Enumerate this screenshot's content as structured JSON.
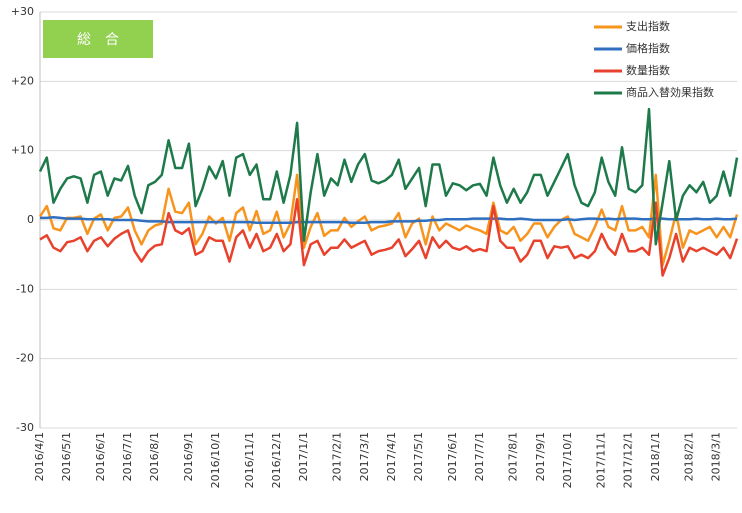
{
  "chart_data": {
    "type": "line",
    "title": "総　合",
    "categories": [
      "2016/4/1",
      null,
      null,
      null,
      "2016/5/1",
      null,
      null,
      null,
      null,
      "2016/6/1",
      null,
      null,
      null,
      "2016/7/1",
      null,
      null,
      null,
      "2016/8/1",
      null,
      null,
      null,
      null,
      "2016/9/1",
      null,
      null,
      null,
      "2016/10/1",
      null,
      null,
      null,
      null,
      "2016/11/1",
      null,
      null,
      null,
      "2016/12/1",
      null,
      null,
      null,
      "2017/1/1",
      null,
      null,
      null,
      null,
      "2017/2/1",
      null,
      null,
      null,
      "2017/3/1",
      null,
      null,
      null,
      "2017/4/1",
      null,
      null,
      null,
      "2017/5/1",
      null,
      null,
      null,
      null,
      "2017/6/1",
      null,
      null,
      null,
      "2017/7/1",
      null,
      null,
      null,
      null,
      "2017/8/1",
      null,
      null,
      null,
      "2017/9/1",
      null,
      null,
      null,
      "2017/10/1",
      null,
      null,
      null,
      null,
      "2017/11/1",
      null,
      null,
      null,
      "2017/12/1",
      null,
      null,
      null,
      "2018/1/1",
      null,
      null,
      null,
      null,
      "2018/2/1",
      null,
      null,
      null,
      "2018/3/1",
      null,
      null,
      null
    ],
    "series": [
      {
        "name": "支出指数",
        "color": "#f7941d",
        "values": [
          0.5,
          2,
          -1.2,
          -1.5,
          0.3,
          0.3,
          0.5,
          -2,
          0.2,
          0.8,
          -1.5,
          0.3,
          0.5,
          1.8,
          -1.5,
          -3.5,
          -1.5,
          -0.8,
          -0.5,
          4.5,
          1.2,
          1,
          2.5,
          -3.5,
          -2,
          0.5,
          -0.5,
          0.3,
          -3,
          1,
          1.8,
          -1.5,
          1.3,
          -2,
          -1.5,
          1.2,
          -2.5,
          -0.5,
          6.5,
          -4,
          -1,
          1,
          -2.3,
          -1.5,
          -1.5,
          0.3,
          -1,
          -0.2,
          0.5,
          -1.5,
          -1,
          -0.8,
          -0.5,
          1,
          -2.5,
          -0.5,
          0.2,
          -3.5,
          0.5,
          -1.5,
          -0.5,
          -1,
          -1.5,
          -0.8,
          -1.2,
          -1.5,
          -2,
          2.5,
          -1.5,
          -2,
          -1,
          -3,
          -2,
          -0.5,
          -0.5,
          -2.5,
          -1,
          0,
          0.5,
          -2,
          -2.5,
          -3,
          -1,
          1.5,
          -1,
          -1.5,
          2,
          -1.5,
          -1.5,
          -1,
          -2.5,
          6.5,
          -6.5,
          -3,
          1,
          -4,
          -1.5,
          -2,
          -1.5,
          -1,
          -2.5,
          -1,
          -2.5,
          0.8
        ]
      },
      {
        "name": "価格指数",
        "color": "#2e6fc0",
        "values": [
          0.3,
          0.3,
          0.4,
          0.3,
          0.2,
          0.2,
          0.2,
          0.1,
          0.1,
          0.1,
          0.1,
          0,
          0,
          0,
          0,
          -0.1,
          -0.2,
          -0.2,
          -0.2,
          -0.3,
          -0.3,
          -0.3,
          -0.3,
          -0.3,
          -0.3,
          -0.3,
          -0.3,
          -0.3,
          -0.3,
          -0.3,
          -0.3,
          -0.3,
          -0.4,
          -0.4,
          -0.4,
          -0.4,
          -0.4,
          -0.4,
          -0.3,
          -0.3,
          -0.3,
          -0.3,
          -0.3,
          -0.3,
          -0.3,
          -0.3,
          -0.4,
          -0.4,
          -0.4,
          -0.3,
          -0.3,
          -0.3,
          -0.2,
          -0.2,
          -0.2,
          -0.2,
          -0.1,
          -0.1,
          0,
          0,
          0.1,
          0.1,
          0.1,
          0.1,
          0.2,
          0.2,
          0.2,
          0.2,
          0.2,
          0.1,
          0.1,
          0.2,
          0.1,
          0,
          0,
          0,
          0,
          0,
          0.1,
          0,
          0.1,
          0.2,
          0.2,
          0.1,
          0.2,
          0.1,
          0.2,
          0.2,
          0.2,
          0.1,
          0.1,
          0.2,
          0.2,
          0.1,
          0.1,
          0.1,
          0.1,
          0.2,
          0.1,
          0.1,
          0.2,
          0.1,
          0.1,
          0.2
        ]
      },
      {
        "name": "数量指数",
        "color": "#e8412c",
        "values": [
          -2.8,
          -2.2,
          -4,
          -4.5,
          -3.2,
          -3,
          -2.5,
          -4.5,
          -3,
          -2.5,
          -3.8,
          -2.7,
          -2,
          -1.5,
          -4.5,
          -6,
          -4.5,
          -3.7,
          -3.5,
          1,
          -1.5,
          -2,
          -1.2,
          -5,
          -4.5,
          -2.5,
          -3,
          -3,
          -6,
          -2.5,
          -1.5,
          -4,
          -2,
          -4.5,
          -4,
          -2,
          -4.5,
          -3.5,
          3,
          -6.5,
          -3.5,
          -3,
          -5,
          -4,
          -4,
          -2.8,
          -4,
          -3.5,
          -3,
          -5,
          -4.5,
          -4.3,
          -4,
          -2.8,
          -5.2,
          -4.2,
          -3,
          -5.5,
          -2.5,
          -4,
          -3,
          -4,
          -4.3,
          -3.8,
          -4.5,
          -4.2,
          -4.5,
          2,
          -3,
          -4,
          -4,
          -6,
          -5,
          -3,
          -3,
          -5.5,
          -3.8,
          -4,
          -3.8,
          -5.5,
          -5,
          -5.5,
          -4.5,
          -2,
          -4,
          -5,
          -2,
          -4.5,
          -4.5,
          -4,
          -5,
          2.5,
          -8,
          -5.5,
          -2,
          -6,
          -4,
          -4.5,
          -4,
          -4.5,
          -5,
          -4,
          -5.5,
          -2.7
        ]
      },
      {
        "name": "商品入替効果指数",
        "color": "#1e7a4a",
        "values": [
          7,
          9,
          2.5,
          4.5,
          6,
          6.3,
          6,
          2.5,
          6.5,
          7,
          3.5,
          6,
          5.7,
          7.8,
          3.5,
          1,
          5,
          5.5,
          6.5,
          11.5,
          7.5,
          7.5,
          11,
          2,
          4.5,
          7.7,
          6,
          8.5,
          3.5,
          9,
          9.5,
          6.5,
          8,
          3,
          3,
          7,
          2.5,
          6.5,
          14,
          -3,
          4,
          9.5,
          3.5,
          6,
          5,
          8.7,
          5.5,
          8,
          9.5,
          5.7,
          5.3,
          5.7,
          6.5,
          8.7,
          4.5,
          6,
          7.5,
          2,
          8,
          8,
          3.5,
          5.3,
          5,
          4.3,
          5,
          5.2,
          3.5,
          9,
          5,
          2.5,
          4.5,
          2.5,
          4,
          6.5,
          6.5,
          3.5,
          5.5,
          7.5,
          9.5,
          5,
          2.5,
          2,
          4,
          9,
          5.5,
          3.5,
          10.5,
          4.5,
          4,
          5,
          16,
          -3.5,
          2.5,
          8.5,
          0,
          3.5,
          5,
          4,
          5.5,
          2.5,
          3.5,
          7,
          3.5,
          9
        ]
      }
    ],
    "ylim": [
      -30,
      30
    ],
    "yticks": [
      -30,
      -20,
      -10,
      0,
      {
        "value": 10,
        "label": "+10"
      },
      {
        "value": 20,
        "label": "+20"
      },
      {
        "value": 30,
        "label": "+30"
      }
    ],
    "grid": true,
    "legend": "top-right"
  }
}
